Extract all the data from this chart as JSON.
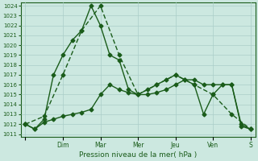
{
  "xlabel": "Pression niveau de la mer( hPa )",
  "ylim": [
    1011,
    1024
  ],
  "yticks": [
    1011,
    1012,
    1013,
    1014,
    1015,
    1016,
    1017,
    1018,
    1019,
    1020,
    1021,
    1022,
    1023,
    1024
  ],
  "day_labels": [
    "",
    "Dim",
    "Mar",
    "Mer",
    "Jeu",
    "Ven",
    "S"
  ],
  "day_positions": [
    0,
    4,
    8,
    12,
    16,
    20,
    24
  ],
  "background_color": "#cce8e0",
  "grid_color": "#aacec8",
  "line_color": "#1a5c1a",
  "series1_x": [
    0,
    1,
    2,
    3,
    4,
    5,
    6,
    7,
    8,
    9,
    10,
    11,
    12,
    13,
    14,
    15,
    16,
    17,
    18,
    19,
    20,
    21,
    22,
    23,
    24
  ],
  "series1_y": [
    1012.0,
    1011.5,
    1012.2,
    1012.5,
    1012.8,
    1013.0,
    1013.2,
    1013.5,
    1015.0,
    1016.0,
    1015.5,
    1015.2,
    1015.0,
    1015.0,
    1015.2,
    1015.5,
    1016.0,
    1016.5,
    1016.5,
    1016.0,
    1016.0,
    1016.0,
    1016.0,
    1012.0,
    1011.5
  ],
  "series2_x": [
    0,
    1,
    2,
    3,
    4,
    5,
    6,
    7,
    8,
    9,
    10,
    11,
    12,
    13,
    14,
    15,
    16,
    17,
    18,
    19,
    20,
    21,
    22,
    23,
    24
  ],
  "series2_y": [
    1012.0,
    1011.5,
    1012.5,
    1017.0,
    1019.0,
    1020.5,
    1021.5,
    1024.0,
    1022.0,
    1019.0,
    1018.5,
    1015.5,
    1015.0,
    1015.5,
    1016.0,
    1016.5,
    1017.0,
    1016.5,
    1016.0,
    1013.0,
    1015.0,
    1016.0,
    1016.0,
    1011.8,
    1011.5
  ],
  "series3_x": [
    0,
    2,
    4,
    6,
    8,
    10,
    12,
    14,
    16,
    18,
    20,
    22,
    24
  ],
  "series3_y": [
    1012.0,
    1012.8,
    1017.0,
    1021.5,
    1024.0,
    1019.0,
    1015.0,
    1016.0,
    1017.0,
    1016.0,
    1015.0,
    1013.0,
    1011.5
  ],
  "marker": "D",
  "markersize": 2.5,
  "linewidth": 1.0
}
